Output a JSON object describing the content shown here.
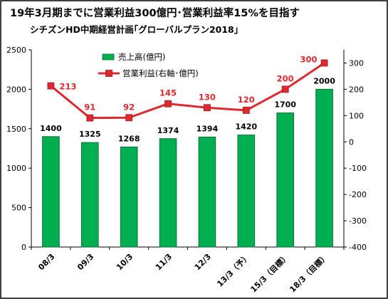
{
  "chart_data": {
    "type": "bar",
    "title": "19年3月期までに営業利益300億円･営業利益率15%を目指す",
    "subtitle": "シチズンHD中期経営計画｢グローバルプラン2018｣",
    "categories": [
      "08/3",
      "09/3",
      "10/3",
      "11/3",
      "12/3",
      "13/3（予）",
      "15/3（目標）",
      "18/3（目標）"
    ],
    "series": [
      {
        "name": "売上高(億円)",
        "type": "bar",
        "axis": "left",
        "color": "#00b050",
        "values": [
          1400,
          1325,
          1268,
          1374,
          1394,
          1420,
          1700,
          2000
        ],
        "labels": [
          "1400",
          "1325",
          "1268",
          "1374",
          "1394",
          "1420",
          "1700",
          "2000"
        ]
      },
      {
        "name": "営業利益(右軸･億円)",
        "type": "line",
        "axis": "right",
        "color": "#e0282e",
        "values": [
          213,
          91,
          92,
          145,
          130,
          120,
          200,
          300
        ],
        "labels": [
          "213",
          "91",
          "92",
          "145",
          "130",
          "120",
          "200",
          "300"
        ]
      }
    ],
    "y_left": {
      "range": [
        0,
        2500
      ],
      "ticks": [
        0,
        500,
        1000,
        1500,
        2000,
        2500
      ],
      "tick_labels": [
        "0",
        "500",
        "1000",
        "1500",
        "2000",
        "2500"
      ]
    },
    "y_right": {
      "range": [
        -400,
        350
      ],
      "ticks": [
        -400,
        -300,
        -200,
        -100,
        0,
        100,
        200,
        300
      ],
      "tick_labels": [
        "-400",
        "-300",
        "-200",
        "-100",
        "0",
        "100",
        "200",
        "300"
      ]
    },
    "grid": false,
    "legend_position": "top-left"
  }
}
